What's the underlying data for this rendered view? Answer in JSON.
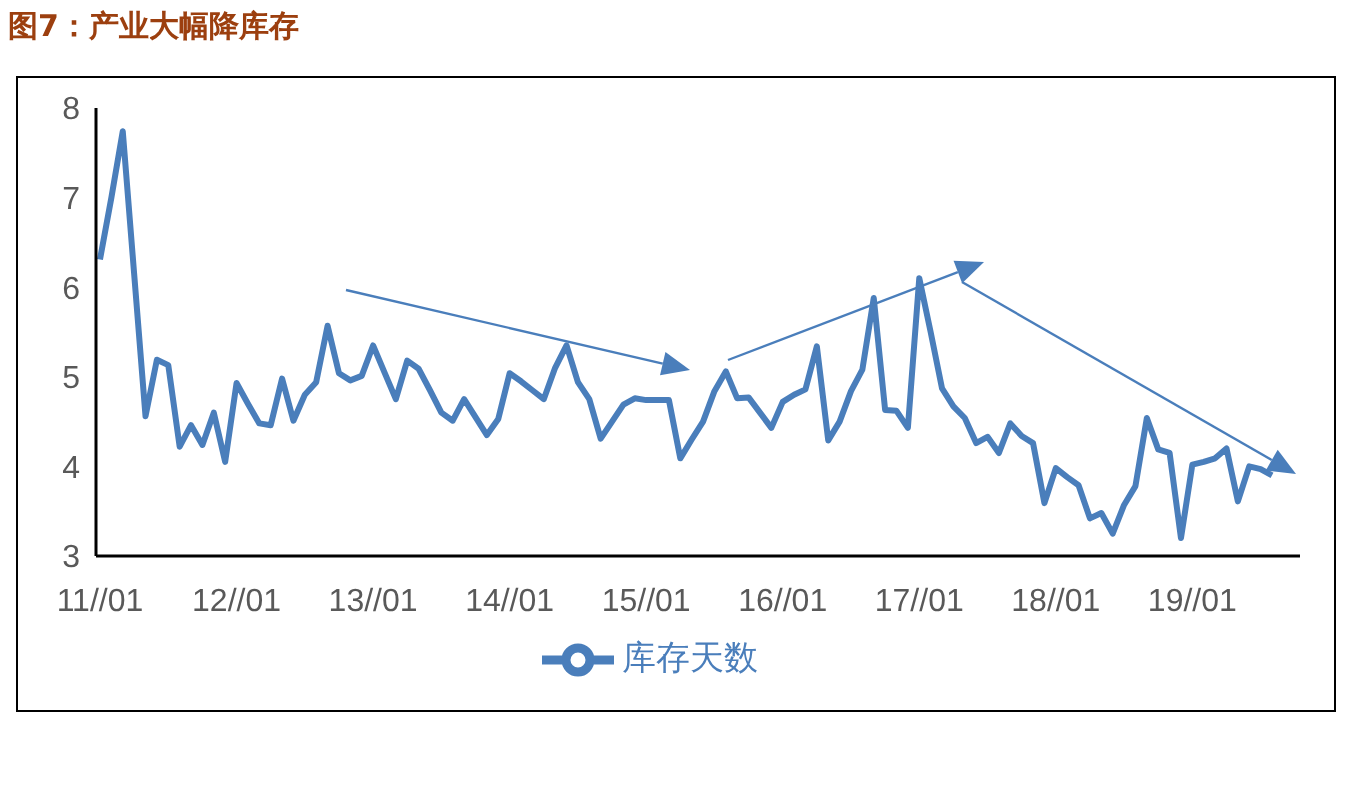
{
  "chart_data": {
    "type": "line",
    "title": "图7：产业大幅降库存",
    "categories": [
      "11//01",
      null,
      null,
      null,
      null,
      null,
      null,
      null,
      null,
      null,
      null,
      null,
      "12//01",
      null,
      null,
      null,
      null,
      null,
      null,
      null,
      null,
      null,
      null,
      null,
      "13//01",
      null,
      null,
      null,
      null,
      null,
      null,
      null,
      null,
      null,
      null,
      null,
      "14//01",
      null,
      null,
      null,
      null,
      null,
      null,
      null,
      null,
      null,
      null,
      null,
      "15//01",
      null,
      null,
      null,
      null,
      null,
      null,
      null,
      null,
      null,
      null,
      null,
      "16//01",
      null,
      null,
      null,
      null,
      null,
      null,
      null,
      null,
      null,
      null,
      null,
      "17//01",
      null,
      null,
      null,
      null,
      null,
      null,
      null,
      null,
      null,
      null,
      null,
      "18//01",
      null,
      null,
      null,
      null,
      null,
      null,
      null,
      null,
      null,
      null,
      null,
      "19//01",
      null,
      null,
      null,
      null,
      null,
      null,
      null
    ],
    "series": [
      {
        "name": "库存天数",
        "color": "#4a7ebb",
        "values": [
          6.31,
          7.0,
          7.74,
          6.15,
          4.56,
          5.19,
          5.13,
          4.22,
          4.46,
          4.24,
          4.6,
          4.05,
          4.93,
          4.7,
          4.48,
          4.46,
          4.98,
          4.51,
          4.8,
          4.94,
          5.57,
          5.04,
          4.96,
          5.01,
          5.35,
          5.05,
          4.75,
          5.18,
          5.09,
          4.85,
          4.6,
          4.51,
          4.75,
          4.55,
          4.35,
          4.53,
          5.04,
          4.95,
          4.85,
          4.75,
          5.1,
          5.35,
          4.94,
          4.75,
          4.31,
          4.5,
          4.69,
          4.76,
          4.74,
          4.74,
          4.74,
          4.09,
          4.3,
          4.5,
          4.84,
          5.06,
          4.76,
          4.77,
          4.6,
          4.43,
          4.72,
          4.8,
          4.86,
          5.34,
          4.29,
          4.5,
          4.84,
          5.08,
          5.88,
          4.63,
          4.62,
          4.43,
          6.1,
          5.5,
          4.87,
          4.67,
          4.54,
          4.26,
          4.33,
          4.15,
          4.48,
          4.34,
          4.26,
          3.59,
          3.98,
          3.88,
          3.79,
          3.42,
          3.48,
          3.25,
          3.57,
          3.78,
          4.54,
          4.19,
          4.15,
          3.2,
          4.02,
          4.05,
          4.09,
          4.2,
          3.61,
          4.0,
          3.97,
          3.9
        ]
      }
    ],
    "ylim": [
      3,
      8
    ],
    "yticks": [
      3,
      4,
      5,
      6,
      7,
      8
    ],
    "grid": false,
    "legend": "bottom",
    "marker": "none",
    "line_style": "solid"
  }
}
